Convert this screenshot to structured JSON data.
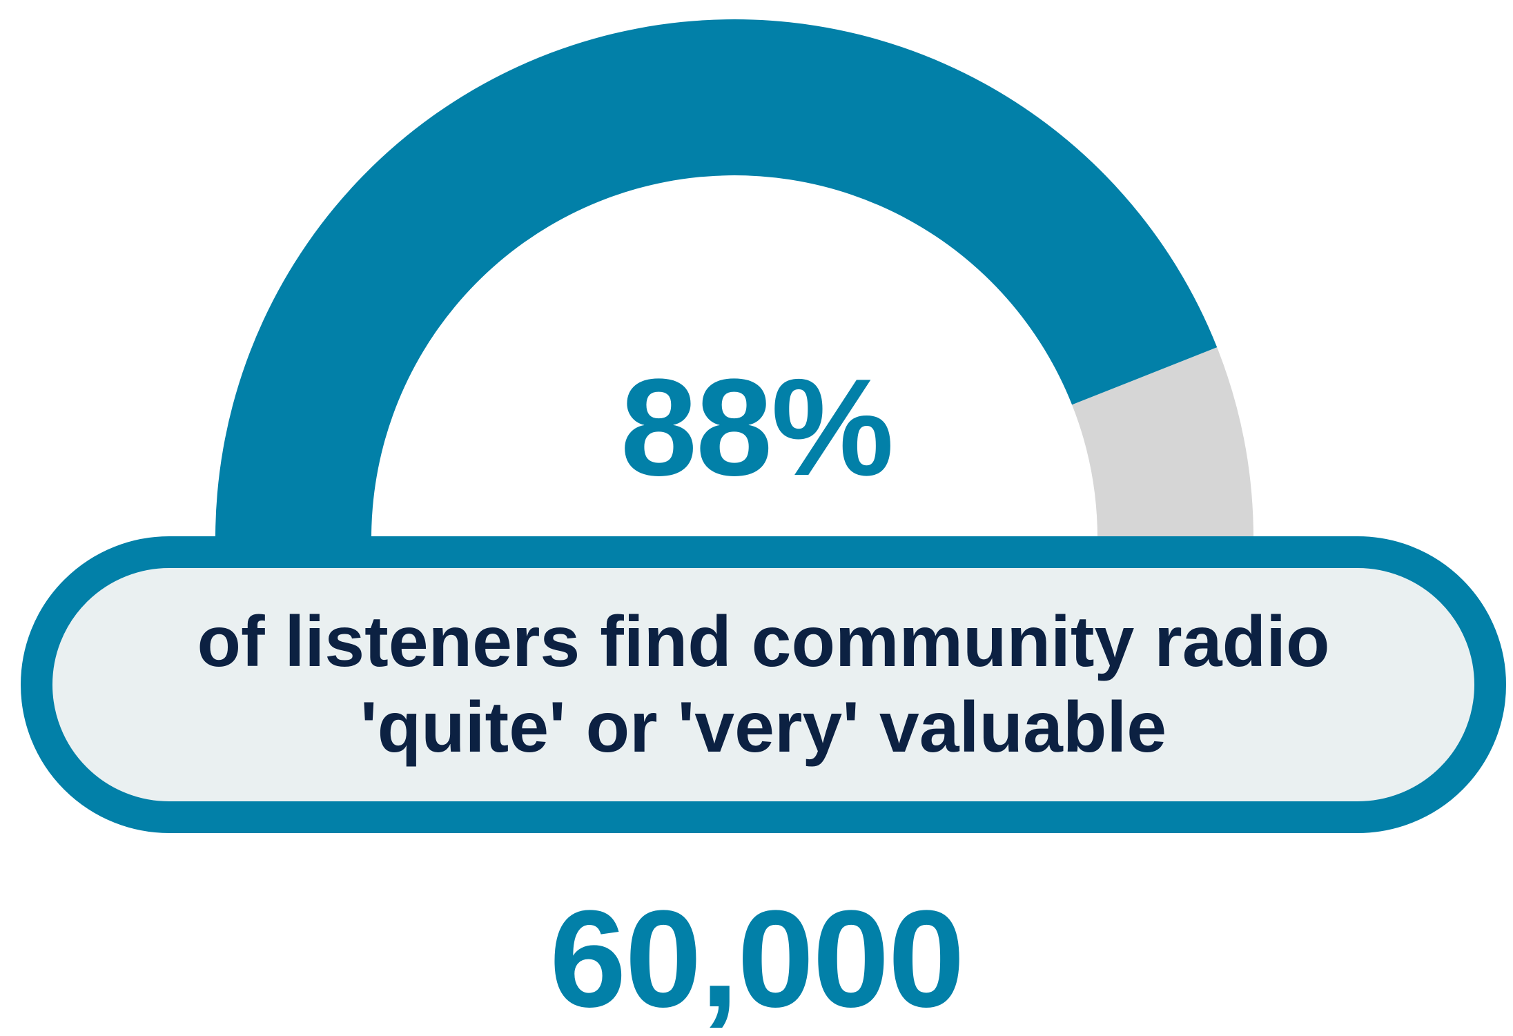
{
  "chart_data": {
    "type": "gauge",
    "value": 88,
    "max": 100,
    "unit": "%",
    "value_label": "88%",
    "caption": "of listeners find community radio 'quite' or 'very' valuable"
  },
  "bottom_number": "60,000",
  "colors": {
    "filled": "#0280a8",
    "remainder": "#d6d6d6",
    "caption_text": "#0c2142",
    "caption_bg": "#eaf0f1"
  }
}
